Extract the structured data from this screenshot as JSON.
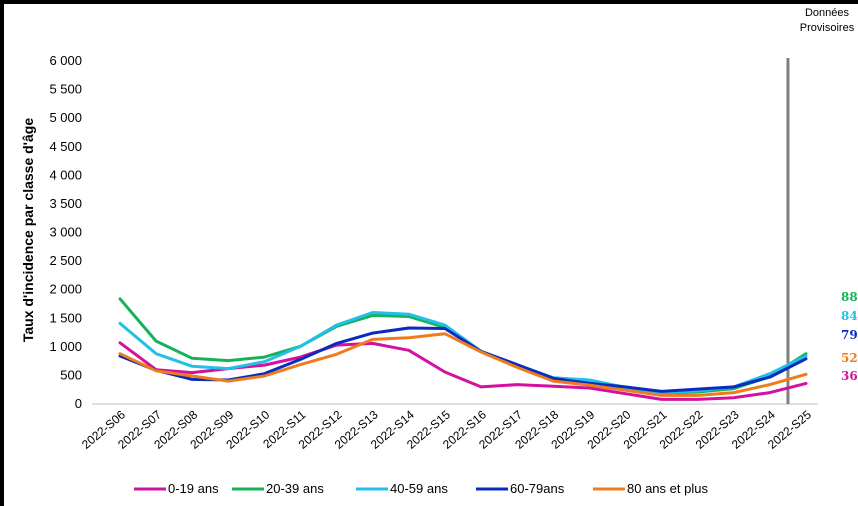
{
  "chart_data": {
    "type": "line",
    "title": "",
    "ylabel": "Taux d'incidence par classe d'âge",
    "xlabel": "",
    "ylim": [
      0,
      6000
    ],
    "yticks": [
      0,
      500,
      1000,
      1500,
      2000,
      2500,
      3000,
      3500,
      4000,
      4500,
      5000,
      5500,
      6000
    ],
    "ytick_labels": [
      "0",
      "500",
      "1 000",
      "1 500",
      "2 000",
      "2 500",
      "3 000",
      "3 500",
      "4 000",
      "4 500",
      "5 000",
      "5 500",
      "6 000"
    ],
    "grid": false,
    "legend_position": "bottom",
    "categories": [
      "2022-S06",
      "2022-S07",
      "2022-S08",
      "2022-S09",
      "2022-S10",
      "2022-S11",
      "2022-S12",
      "2022-S13",
      "2022-S14",
      "2022-S15",
      "2022-S16",
      "2022-S17",
      "2022-S18",
      "2022-S19",
      "2022-S20",
      "2022-S21",
      "2022-S22",
      "2022-S23",
      "2022-S24",
      "2022-S25"
    ],
    "annotation": {
      "text_line1": "Données",
      "text_line2": "Provisoires",
      "at_category": "2022-S24",
      "offset": 0.5
    },
    "series": [
      {
        "name": "0-19 ans",
        "color": "#d3109f",
        "end_label": "36",
        "values": [
          1070,
          600,
          550,
          620,
          680,
          820,
          1030,
          1060,
          940,
          560,
          300,
          340,
          310,
          280,
          180,
          80,
          80,
          110,
          200,
          360
        ]
      },
      {
        "name": "20-39 ans",
        "color": "#17b15a",
        "end_label": "88",
        "values": [
          1840,
          1100,
          800,
          760,
          820,
          1010,
          1360,
          1550,
          1530,
          1340,
          920,
          680,
          420,
          380,
          290,
          190,
          210,
          270,
          480,
          880
        ]
      },
      {
        "name": "40-59 ans",
        "color": "#22c0e8",
        "end_label": "84",
        "values": [
          1410,
          880,
          660,
          620,
          740,
          1010,
          1380,
          1600,
          1570,
          1380,
          920,
          680,
          460,
          420,
          290,
          200,
          230,
          300,
          530,
          840
        ]
      },
      {
        "name": "60-79ans",
        "color": "#0a2bbf",
        "end_label": "79",
        "values": [
          840,
          590,
          430,
          420,
          530,
          780,
          1060,
          1240,
          1330,
          1320,
          920,
          690,
          450,
          360,
          300,
          220,
          260,
          300,
          470,
          790
        ]
      },
      {
        "name": "80 ans et plus",
        "color": "#ee7b1c",
        "end_label": "52",
        "values": [
          880,
          580,
          490,
          400,
          490,
          690,
          870,
          1130,
          1160,
          1230,
          910,
          640,
          400,
          330,
          240,
          150,
          150,
          200,
          340,
          520
        ]
      }
    ]
  }
}
